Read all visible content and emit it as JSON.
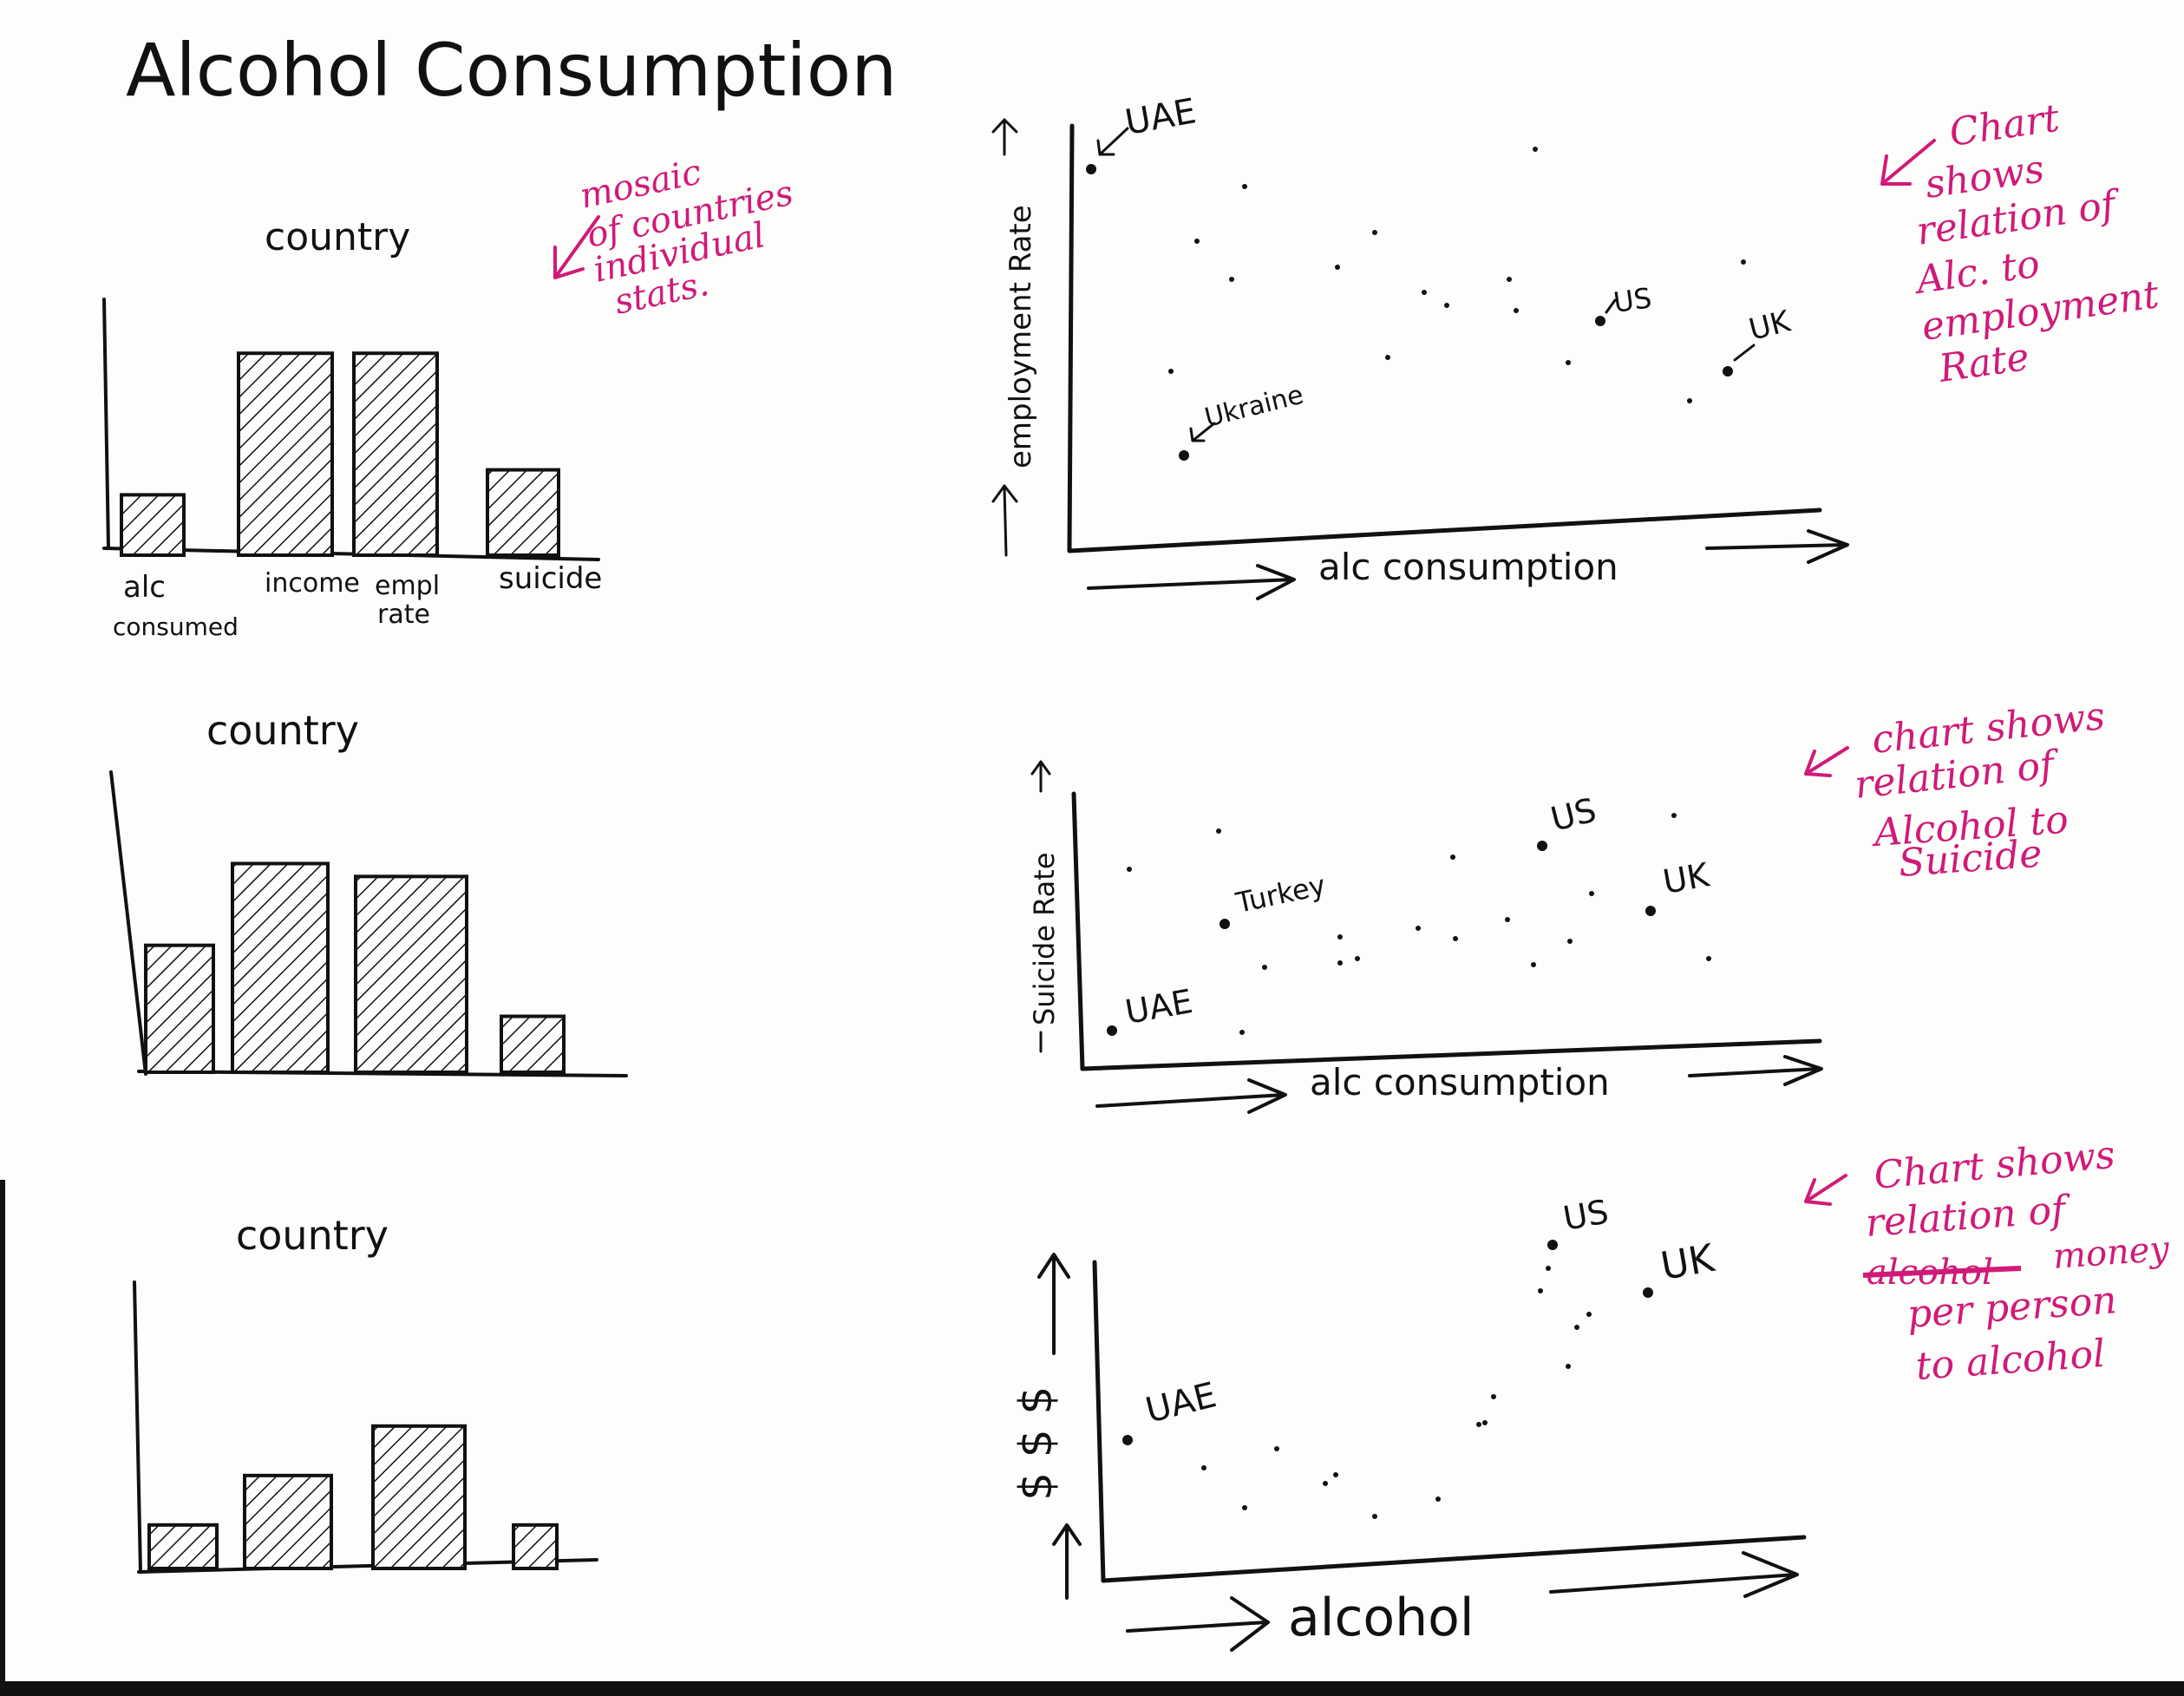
{
  "page": {
    "title": "Alcohol Consumption"
  },
  "colors": {
    "ink": "#111111",
    "annotation": "#d01a78",
    "paper": "#fdfdfb"
  },
  "bar_charts": [
    {
      "title": "country",
      "categories": [
        "alc consumed",
        "income",
        "empl rate",
        "suicide"
      ],
      "category_lines": [
        [
          "alc",
          "consumed"
        ],
        [
          "income"
        ],
        [
          "empl",
          "rate"
        ],
        [
          "suicide"
        ]
      ],
      "values": [
        0.29,
        0.97,
        0.97,
        0.41
      ]
    },
    {
      "title": "country",
      "categories": [
        "",
        "",
        "",
        ""
      ],
      "values": [
        0.59,
        0.97,
        0.91,
        0.26
      ]
    },
    {
      "title": "country",
      "categories": [
        "",
        "",
        "",
        ""
      ],
      "values": [
        0.22,
        0.47,
        0.72,
        0.22
      ]
    }
  ],
  "scatter_plots": [
    {
      "ylabel": "employment Rate",
      "xlabel": "alc consumption",
      "labels": [
        "UAE",
        "Ukraine",
        "US",
        "UK"
      ],
      "note": [
        "Chart",
        "shows",
        "relation of",
        "Alc. to",
        "employment",
        "Rate"
      ]
    },
    {
      "ylabel": "Suicide Rate",
      "xlabel": "alc consumption",
      "labels": [
        "US",
        "Turkey",
        "UK",
        "UAE"
      ],
      "note": [
        "chart shows",
        "relation of",
        "Alcohol to",
        "Suicide"
      ]
    },
    {
      "ylabel": "$ $ $",
      "xlabel": "alcohol",
      "labels": [
        "US",
        "UK",
        "UAE"
      ],
      "note": [
        "Chart shows",
        "relation of",
        "alcohol",
        "money",
        "per person",
        "to alcohol"
      ]
    }
  ],
  "mosaic_note": [
    "mosaic",
    "of countries",
    "individual",
    "stats."
  ]
}
